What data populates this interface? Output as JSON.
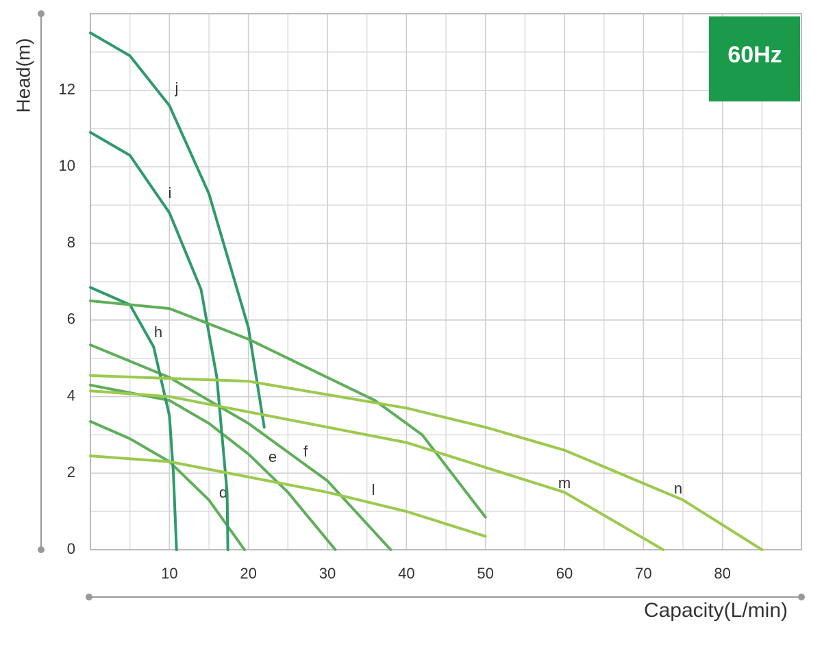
{
  "chart_data": {
    "type": "line",
    "title": "60Hz",
    "x_label": "Capacity(L/min)",
    "y_label": "Head(m)",
    "xlim": [
      0,
      90
    ],
    "ylim": [
      0,
      14
    ],
    "xticks": [
      10,
      20,
      30,
      40,
      50,
      60,
      70,
      80
    ],
    "yticks": [
      0,
      2,
      4,
      6,
      8,
      10,
      12
    ],
    "grid": true,
    "series": [
      {
        "name": "d",
        "color": "#5fae5a",
        "x": [
          0,
          5,
          10,
          15,
          19.5
        ],
        "values": [
          3.35,
          2.9,
          2.3,
          1.3,
          0
        ]
      },
      {
        "name": "e",
        "color": "#5fae5a",
        "x": [
          0,
          10,
          15,
          20,
          25,
          31
        ],
        "values": [
          4.3,
          3.9,
          3.3,
          2.5,
          1.5,
          0
        ]
      },
      {
        "name": "f",
        "color": "#5fae5a",
        "x": [
          0,
          10,
          20,
          30,
          38
        ],
        "values": [
          5.35,
          4.5,
          3.3,
          1.8,
          0
        ]
      },
      {
        "name": "h",
        "color": "#2f9a6c",
        "x": [
          0,
          5,
          8,
          10,
          10.5,
          10.9
        ],
        "values": [
          6.85,
          6.4,
          5.3,
          3.5,
          2,
          0
        ]
      },
      {
        "name": "i",
        "color": "#2f9a6c",
        "x": [
          0,
          5,
          10,
          14,
          16,
          17.3,
          17.4
        ],
        "values": [
          10.9,
          10.3,
          8.8,
          6.8,
          4.5,
          1.5,
          0
        ]
      },
      {
        "name": "j",
        "color": "#2f9a6c",
        "x": [
          0,
          5,
          10,
          15,
          20,
          22
        ],
        "values": [
          13.5,
          12.9,
          11.6,
          9.3,
          5.8,
          3.2
        ]
      },
      {
        "color": "#5fae5a",
        "x": [
          0,
          10,
          20,
          30,
          36,
          42,
          50
        ],
        "values": [
          6.5,
          6.3,
          5.5,
          4.5,
          3.9,
          3.0,
          0.85
        ]
      },
      {
        "name": "l",
        "color": "#9cc94e",
        "x": [
          0,
          10,
          20,
          30,
          40,
          50
        ],
        "values": [
          2.45,
          2.3,
          1.9,
          1.5,
          1.0,
          0.35
        ]
      },
      {
        "name": "m",
        "color": "#9cc94e",
        "x": [
          0,
          10,
          20,
          40,
          60,
          72.5
        ],
        "values": [
          4.15,
          4.0,
          3.6,
          2.8,
          1.5,
          0
        ]
      },
      {
        "name": "n",
        "color": "#9cc94e",
        "x": [
          0,
          20,
          40,
          50,
          60,
          75,
          85
        ],
        "values": [
          4.55,
          4.4,
          3.7,
          3.2,
          2.6,
          1.3,
          0
        ]
      }
    ]
  }
}
